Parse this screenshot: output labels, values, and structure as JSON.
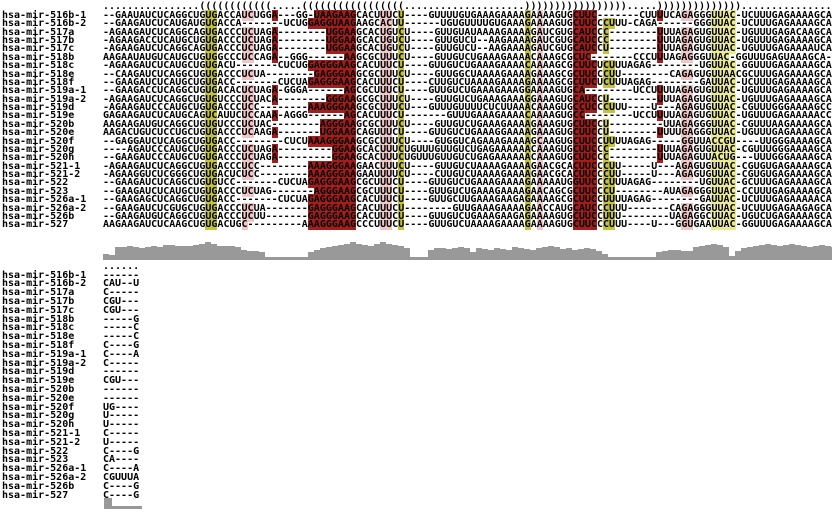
{
  "app": {
    "description_title": "RNA multiple sequence alignment with consensus structure and conservation profile"
  },
  "colors": {
    "text": "#000000",
    "background": "#ffffff",
    "histogram_gray": "#999999",
    "highlight_olive": "#C3C33B",
    "highlight_pale_yellow": "#E9E996",
    "highlight_pink": "#F0C6C6",
    "highlight_dark_red": "#A31D1D"
  },
  "column_colors": {
    "c-olive": [
      17,
      18,
      49,
      70,
      83,
      84
    ],
    "c-pink": [
      23,
      24,
      46,
      47,
      72,
      96,
      97
    ],
    "c-red": [
      28,
      34,
      35,
      36,
      37,
      38,
      39,
      40,
      41,
      78,
      79,
      80,
      81,
      92
    ],
    "c-pale": [
      101,
      102,
      103,
      104
    ]
  },
  "labels": [
    "hsa-mir-516b-1",
    "hsa-mir-516b-2",
    "hsa-mir-517a",
    "hsa-mir-517b",
    "hsa-mir-517c",
    "hsa-mir-518b",
    "hsa-mir-518c",
    "hsa-mir-518e",
    "hsa-mir-518f",
    "hsa-mir-519a-1",
    "hsa-mir-519a-2",
    "hsa-mir-519d",
    "hsa-mir-519e",
    "hsa-mir-520b",
    "hsa-mir-520e",
    "hsa-mir-520f",
    "hsa-mir-520g",
    "hsa-mir-520h",
    "hsa-mir-521-1",
    "hsa-mir-521-2",
    "hsa-mir-522",
    "hsa-mir-523",
    "hsa-mir-526a-1",
    "hsa-mir-526a-2",
    "hsa-mir-526b",
    "hsa-mir-527"
  ],
  "block1": {
    "structure": "................((((((((((((.....(((((((((((((((((....................))))))))))))))))).....))))))))))))))................",
    "sequences": [
      "--GAAUAUCUCAGGCUGUGACCAUCUGGA---GG-UAAGAAGCACUUUCU----GUUUUGUGAAAGAAAAGAAAAGUGCUUC-------CUUUUCAGAGGGUUAC-UCUUUGAGAAAAGCA-",
      "--GAAGAUCUCAUGAUGUGACCA-------UCUGGAGGUAAGAAGCACUU------UGUGUUUUGUGAAAGAAAAGUGCUUCCCUUU-CAGA------GGGUUAC-UCUUUGAGAAAAGCAG",
      "-AGAAGAUCUCAGGCAGUGACCCUCUAGA--------UGGAAGCACUGUCU----GUUGUAUAAAAGAAAAGAUCGUGCAUCCC--------UUUAGAGUGUUAC-UGUUUGAGACAAGCAA",
      "-AGAAGACCUCAUGCUGUGACCCUCUAGA--------UGGAAGCACUGUCU----GUUGUCU--AAGAAAAGAUCGUGCAUCCC--------UUUAGAGUGUUAC-UGUUUGAGAAAAGCAA",
      "-AGAAGAUCUCAGGCAGUGACCCUCUAGA--------UGGAAGCACUGUCU----GUUGUCU--AAGAAAAGAUCGUGCAUCCU--------UUUAGAGUGUUAC-UGUUUGAGAAAAUCAA",
      "AAGAAUAUGUCAUGCUGUGGCCCUCCAGA--GGG------AAGCGCUUUCU----GUUGUCUGAAAGAAAACAAAGCGCUC-------CCCUUUAGAGGGUUAC-GGUUUGAGUAAAGCA--",
      "-AGAAGAUCUCAUGCUGUGACU-------CUCUGGAGGGAAGCACUUUCU----GUUGUCUGAAAGAAAACAAAAGCGCUUCUCUUUAGAG--------UGUUAC-GGUUUGAGAAAAGCAA",
      "--CAAGAUCUCAGGCUGUGACCCUCUA--------GAGGGAAGCGCUUUCU----GUUGGCUAAAAGAAAAGAAAGCGCUUCCCUU--------CAGAGUGUUAACGCUUUGAGAAAAGCAA",
      "--GAAGAUCUCAUGCUGUGACC-------CUCUAGAGGGAAGCACUUUCU----CUUGUCUAAAAGAAAAGAAAAGCGCUUCUCUUUAGAG--------GAUUAC-UCUUUGAGAAAAGCAA",
      "--GAAGACCUCAGGCUGUGACACUCUAGA-GGGA------AGCGCUUUCU----GUUGUCUGAAAGAAAGGAAAAGUGCA--------UCCUUUUAGAGUGUUAC-UGUUUGAGAAAAGCAA",
      "-AGAAGAUCUCAGGCUGUGUCCCUCUACA--------GGGAAGCGCUUUCU----GUUGUCUGAAAGAAAGGAAAGUGCAUCCU--------UUUAGAGUGUUAC-UGUUUGAGAAAAGCAA",
      "-AGAAGAUCCCAUGCUGUGACCCUCC--------AAAGGGAAGCGCUUUCU---GUUUGUUUUCUCUUAAACAAAGUGCCUCCCUUU----U---AGAGUGUUAC-CGUUUGGGAAAAGCCA",
      "GAGAAGAUCUCAUGCAGUCAUUCUCCAAA-AGGG------AGCACUUUCU-------GUUUGAAAGAAAACAAAAGUGCC--------UCCUUUUAGAGUGUUAC-UGUUUGAGAAAAACCA",
      "AAGAAGAUGUCAGGCUGUGUCCCUCUAC--------AGGGAAGCGCUUUCU----GUUGUCUGAAAGAAAAGAAAGUGCUUCCU---------UUAGAGGGUUAC-CGUUUAAGAAAAGCAA",
      "AAGACUGUCUCCUGCUGUGACCCUCAAGA-------UGGAAGCAGUUUCU----GUUGUCUGAAAGGAAAAGAAAGUGCUUCCU--------UUUUGAGGGUUAC-UGUUUGAGAAAAGCAA",
      "--GAGGAUCUCAGGCUGUGACC--------CUCUAAAGGGAAGCGCUUUCU----GUGGUCAGAAAGAAAAGCAAGUGCUUCCUUUUAGAG-----GGUUACCGU----UUGGGAAAAGCAA",
      "----AGAUCCCAUGCUGUGACCCUCUAGA---------GGAAGCACUUUCUGUUUGUUGUCUGAGAAAAAACAAAGUGCUUCCC--------UUUAGAGUGUUAC-CGUUUGGGAAAAGCAG",
      "--GAAGAUCCCAUGCUGUGACCCUCUAGA---------GGAAGCACUUUCUGUUUGUUGUCUGAGAAAAAACAAAGUGCUUCCC--------UUUAGAGUUACUG---UUUGGGAAAAGCAG",
      "-AGAAGAUCUCAGGCUGUGACCCUCC--------AAAGGGAAGAACUUUCU----GUUGUCUAAAAGAAAAGAACGCACUUCCCUU-----U---AGAGUGUUAC-CGUGUGAGAAAAGCAA",
      "-AGAAGGUCUCGGGCUGUGACUCUCC--------AAAGGGAAGAAUUUUCU----CUUGUCUAAAAGAAAAGAACGCACUUCCCUU-----U---AGAGUGUUAC-CGUGUGAGAAAAGCAA",
      "--GAAGAUCUCAGGCUGUGUCC-------CUCUAGAGGGAAGCGCUUUCU----GUUGUCUGAAAGAAAAGAAAAAUGGUUCCCUUUAGAG--------UGUUAC-GCUUUGAGAAAAGCAU",
      "--GAAGAUCUCAUGCUGUGACCCUCUAG-------AGGGAAGCGCUUUCU----GUUGUCUGAAAGAAAAGAACAGCGCUUCCCU--------AUAGAGGGUUAC-CCUUUGAGAAAAGCAG",
      "--GAAGAGCUCAGGCUGUGACC-------CUCUAGAGGGAAGCACUUUCU----GUUGCUUGAAAGAAGAGAAAAGCGCUUCCUUUUAGAG--------GAUUAC-UCUUUGAGAAAAACAA",
      "--GAAGAUCUCGUGCUGUGACCCUCUA-------GAGGGAAGCACUUUCU--------GUUGAAAGAAAAGAACCAUGCAUCCCUUU-------CAGAGGGUUAC-UCUUUGAGAAGAGCAA",
      "--GAAGAUGUCAGGCUGUGACCCUCUU-------GAGGGAAGCACUUUCU----GUUGUCUGAAAGAAGAGAAAAGUGCUUCCUUU--------UAGAGGCUUAC-UGUCUGAGAAAAGCAA",
      "AAGAAGAUCUCAAGCUGUGACUGC---------AAAGGGAAGCCCUUUCU----GUUGUCUAAAAGAAAAGAAAAGUGCUUCCCUUU----U---GGUGAAUUAC-GGUUUGAGAAAAGCAA"
    ],
    "conservation": [
      15,
      12,
      45,
      45,
      48,
      45,
      42,
      45,
      48,
      45,
      55,
      55,
      48,
      50,
      48,
      55,
      60,
      65,
      58,
      52,
      50,
      48,
      45,
      35,
      30,
      28,
      25,
      4,
      4,
      4,
      4,
      4,
      4,
      4,
      25,
      35,
      40,
      45,
      50,
      55,
      60,
      65,
      60,
      55,
      52,
      60,
      65,
      60,
      55,
      50,
      40,
      5,
      5,
      5,
      35,
      40,
      40,
      38,
      42,
      45,
      40,
      25,
      40,
      38,
      35,
      42,
      38,
      35,
      45,
      40,
      38,
      35,
      42,
      45,
      50,
      45,
      38,
      40,
      35,
      38,
      42,
      38,
      30,
      15,
      3,
      3,
      3,
      3,
      3,
      3,
      3,
      3,
      25,
      30,
      35,
      35,
      30,
      28,
      45,
      50,
      55,
      60,
      55,
      45,
      10,
      30,
      40,
      45,
      50,
      55,
      60,
      55,
      50,
      55,
      60,
      55,
      50,
      45,
      50,
      55,
      50,
      45
    ]
  },
  "block2": {
    "structure": "......",
    "sequences": [
      "------",
      "CAU--U",
      "C-----",
      "CGU---",
      "CGU---",
      "-----G",
      "-----C",
      "-----C",
      "C----G",
      "C----A",
      "C-----",
      "------",
      "CGU---",
      "------",
      "------",
      "UG----",
      "U-----",
      "U-----",
      "C-----",
      "U-----",
      "C----G",
      "CA----",
      "C----A",
      "CGUUUA",
      "C----G",
      "C----G"
    ],
    "conservation": [
      62,
      4,
      4,
      4,
      4,
      4
    ]
  },
  "layout_note_values": {
    "block1_row_count": 26,
    "block2_row_count": 26,
    "alignment_length": 122
  }
}
